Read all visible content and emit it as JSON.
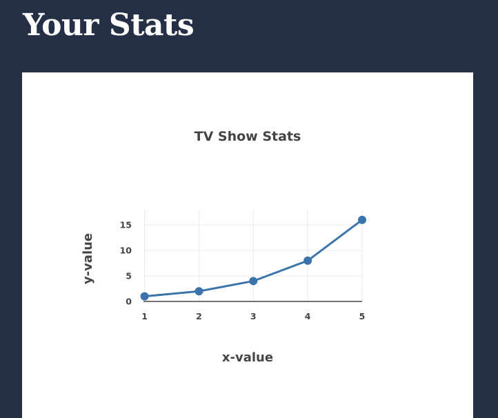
{
  "page": {
    "title": "Your Stats"
  },
  "chart_data": {
    "type": "line",
    "title": "TV Show Stats",
    "xlabel": "x-value",
    "ylabel": "y-value",
    "x": [
      1,
      2,
      3,
      4,
      5
    ],
    "series": [
      {
        "values": [
          1,
          2,
          4,
          8,
          16
        ],
        "color": "#3a74ab"
      }
    ],
    "xlim": [
      0.98,
      5.0
    ],
    "ylim": [
      0,
      18
    ],
    "xticks": [
      1,
      2,
      3,
      4,
      5
    ],
    "yticks": [
      0,
      5,
      10,
      15
    ],
    "grid": true,
    "legend": "none"
  }
}
